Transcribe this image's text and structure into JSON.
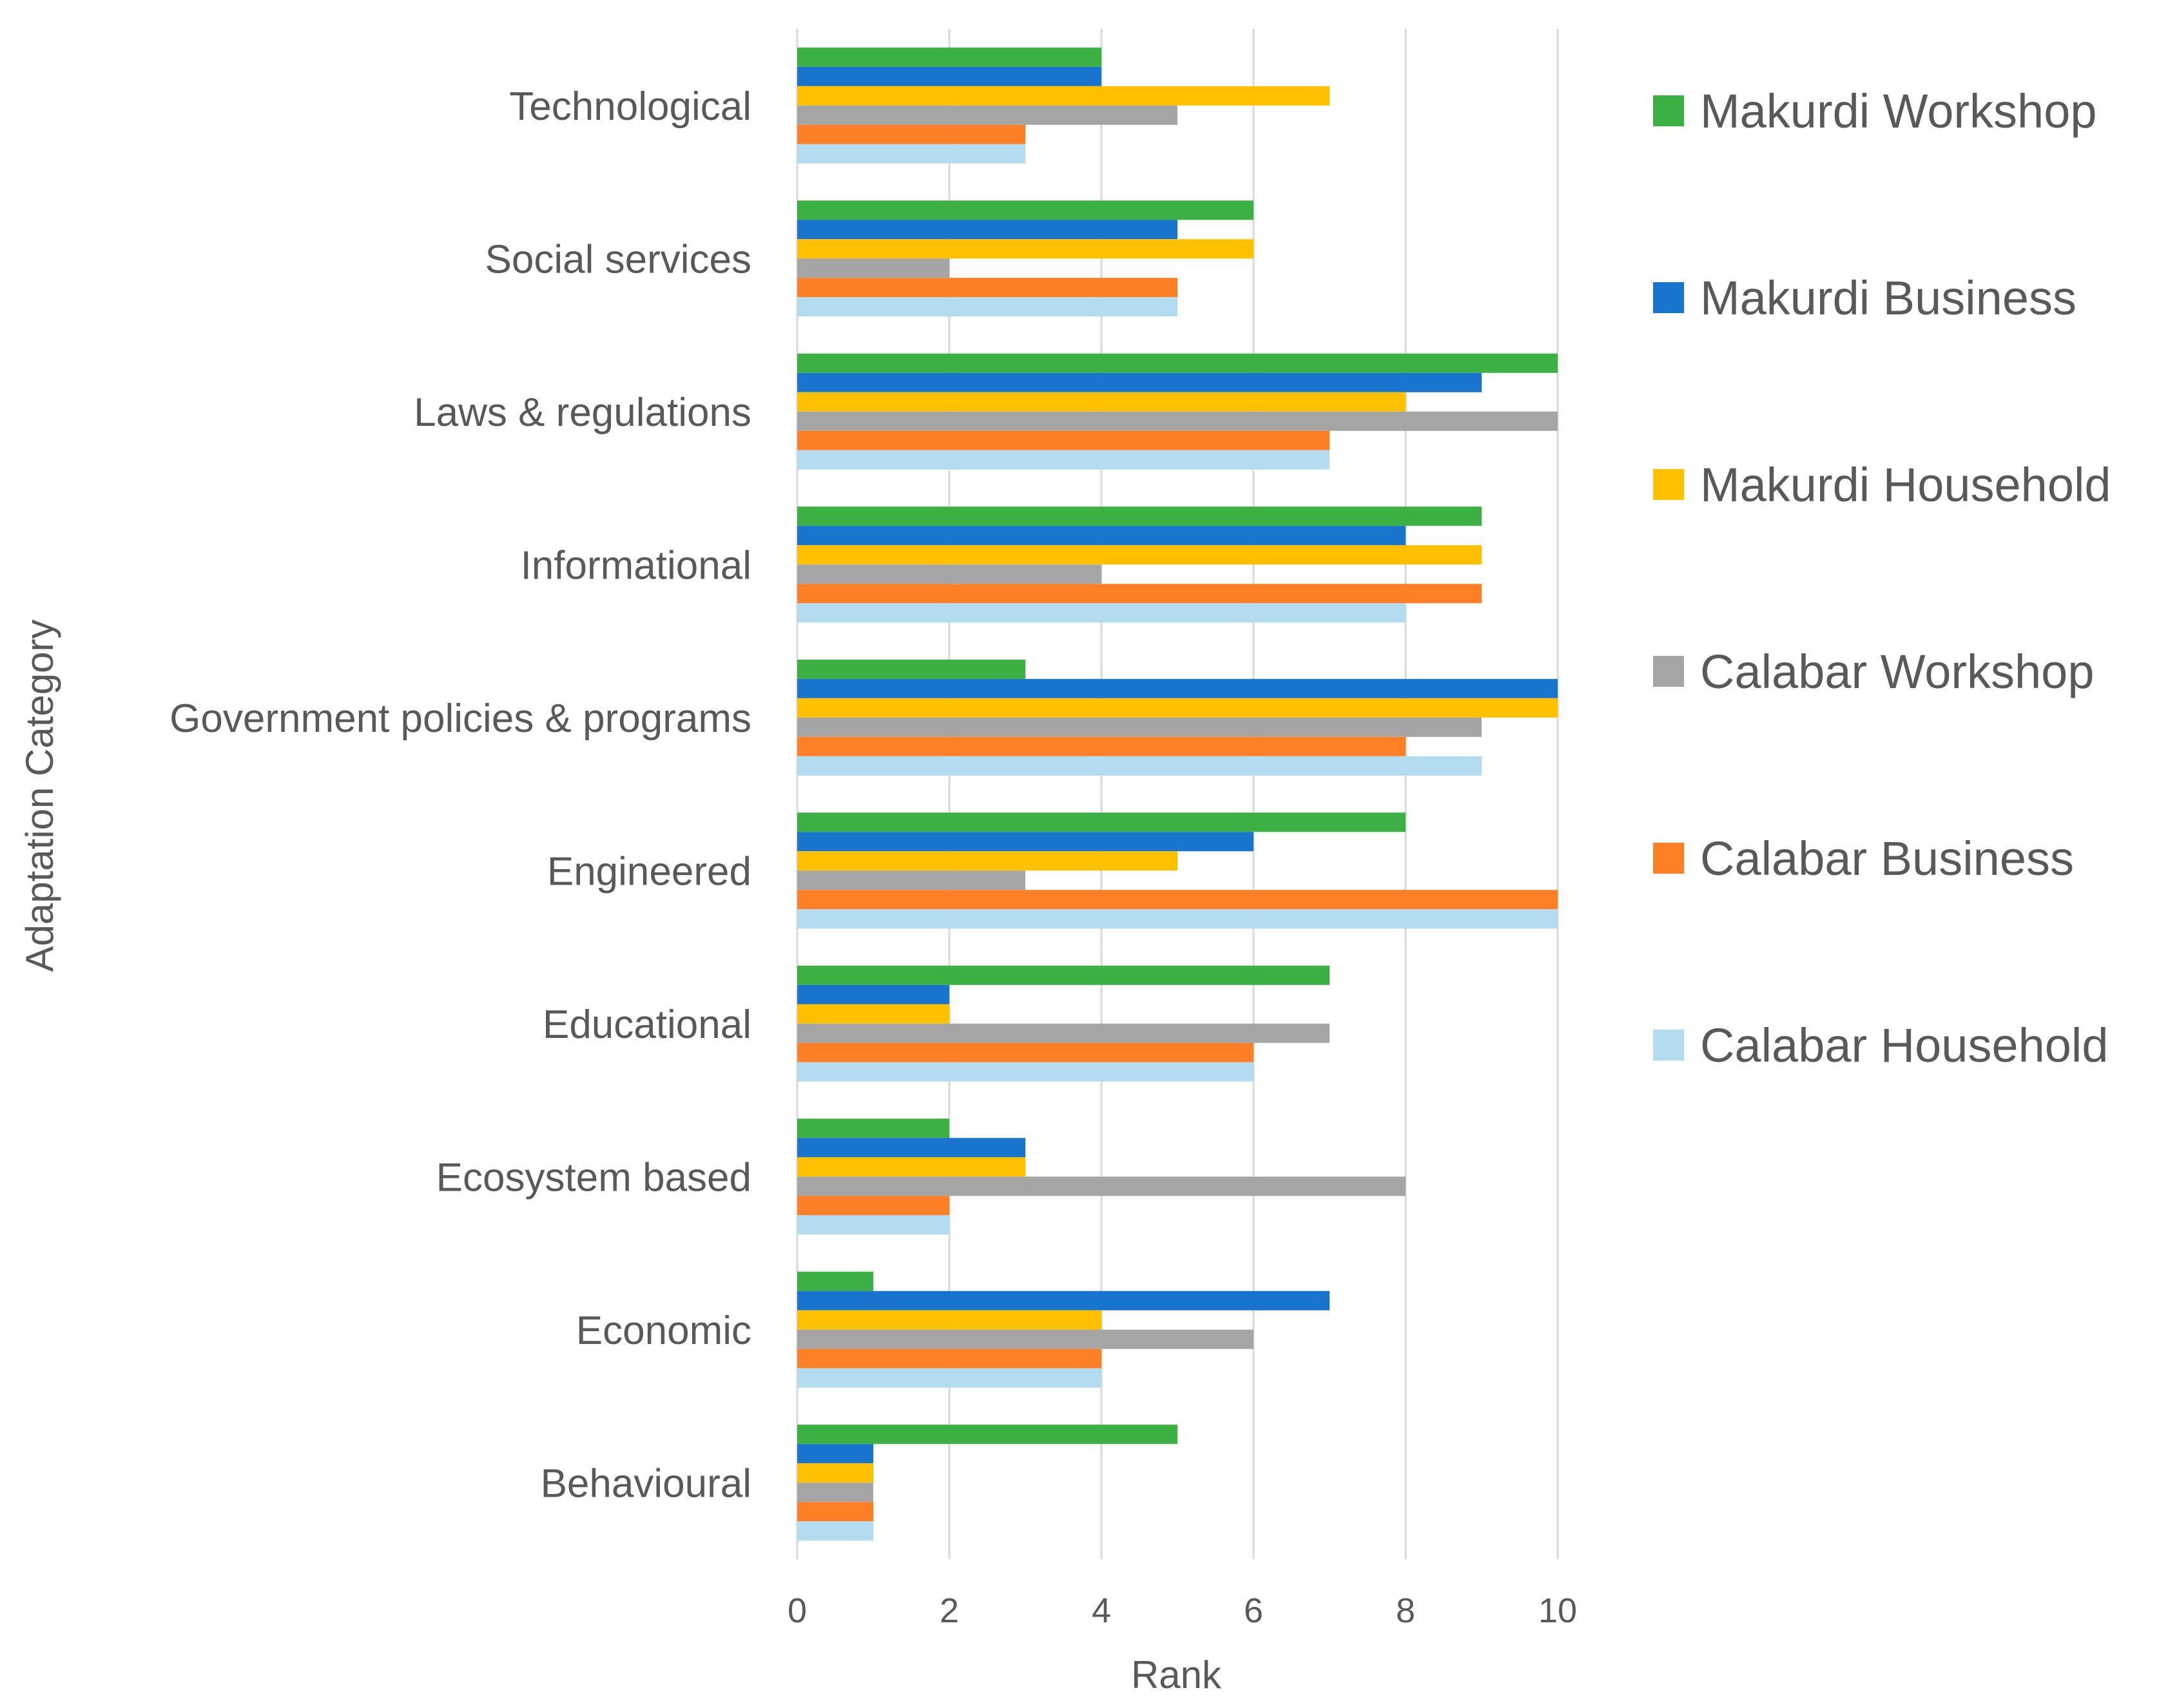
{
  "chart_data": {
    "type": "bar",
    "orientation": "horizontal",
    "title": "",
    "xlabel": "Rank",
    "ylabel": "Adaptation Category",
    "xlim": [
      0,
      10
    ],
    "x_ticks": [
      "0",
      "2",
      "4",
      "6",
      "8",
      "10"
    ],
    "grid": true,
    "legend_position": "right",
    "categories": [
      "Technological",
      "Social services",
      "Laws & regulations",
      "Informational",
      "Government policies & programs",
      "Engineered",
      "Educational",
      "Ecosystem based",
      "Economic",
      "Behavioural"
    ],
    "series": [
      {
        "name": "Makurdi Workshop",
        "color": "#3cb043",
        "values": [
          4,
          6,
          10,
          9,
          3,
          8,
          7,
          2,
          1,
          5
        ]
      },
      {
        "name": "Makurdi Business",
        "color": "#1874cd",
        "values": [
          4,
          5,
          9,
          8,
          10,
          6,
          2,
          3,
          7,
          1
        ]
      },
      {
        "name": "Makurdi Household",
        "color": "#ffc000",
        "values": [
          7,
          6,
          8,
          9,
          10,
          5,
          2,
          3,
          4,
          1
        ]
      },
      {
        "name": "Calabar Workshop",
        "color": "#a5a5a5",
        "values": [
          5,
          2,
          10,
          4,
          9,
          3,
          7,
          8,
          6,
          1
        ]
      },
      {
        "name": "Calabar Business",
        "color": "#ff7f27",
        "values": [
          3,
          5,
          7,
          9,
          8,
          10,
          6,
          2,
          4,
          1
        ]
      },
      {
        "name": "Calabar Household",
        "color": "#b4dcf0",
        "values": [
          3,
          5,
          7,
          8,
          9,
          10,
          6,
          2,
          4,
          1
        ]
      }
    ]
  }
}
